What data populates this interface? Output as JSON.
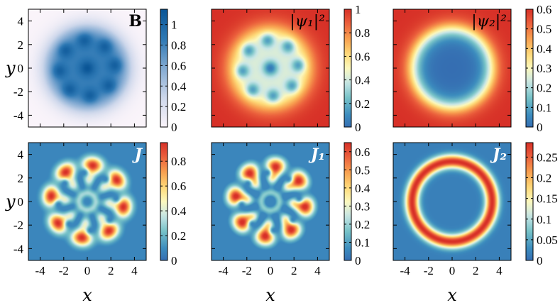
{
  "chart_data": [
    {
      "type": "heatmap",
      "label": "B",
      "label_style": "bold",
      "label_color": "dark",
      "colormap": "white-blue",
      "colorbar_ticks": [
        "0",
        "0.2",
        "0.4",
        "0.6",
        "0.8",
        "1"
      ],
      "vmax": 1.15,
      "pattern": "ring-of-vortices-filled",
      "show_xticks": false,
      "show_yticks": true,
      "ylabel": "y",
      "xlabel": ""
    },
    {
      "type": "heatmap",
      "label": "|ψ₁|²",
      "label_style": "italic",
      "label_color": "dark",
      "colormap": "spectral",
      "colorbar_ticks": [
        "0",
        "0.2",
        "0.4",
        "0.6",
        "0.8",
        "1"
      ],
      "vmax": 1.0,
      "pattern": "ring-of-vortices-holes",
      "show_xticks": false,
      "show_yticks": false,
      "ylabel": "",
      "xlabel": ""
    },
    {
      "type": "heatmap",
      "label": "|ψ₂|²",
      "label_style": "italic",
      "label_color": "dark",
      "colormap": "spectral",
      "colorbar_ticks": [
        "0",
        "0.1",
        "0.2",
        "0.3",
        "0.4",
        "0.5",
        "0.6"
      ],
      "vmax": 0.6,
      "pattern": "disk-hole",
      "show_xticks": false,
      "show_yticks": false,
      "ylabel": "",
      "xlabel": ""
    },
    {
      "type": "heatmap",
      "label": "J",
      "label_style": "bold-italic",
      "label_color": "white",
      "colormap": "spectral",
      "colorbar_ticks": [
        "0",
        "0.2",
        "0.4",
        "0.6",
        "0.8"
      ],
      "vmax": 0.95,
      "pattern": "current-total",
      "show_xticks": true,
      "show_yticks": true,
      "ylabel": "y",
      "xlabel": "x"
    },
    {
      "type": "heatmap",
      "label": "J₁",
      "label_style": "bold-italic",
      "label_color": "white",
      "colormap": "spectral",
      "colorbar_ticks": [
        "0",
        "0.1",
        "0.2",
        "0.3",
        "0.4",
        "0.5",
        "0.6"
      ],
      "vmax": 0.65,
      "pattern": "current-1",
      "show_xticks": true,
      "show_yticks": false,
      "ylabel": "",
      "xlabel": "x"
    },
    {
      "type": "heatmap",
      "label": "J₂",
      "label_style": "bold-italic",
      "label_color": "white",
      "colormap": "spectral",
      "colorbar_ticks": [
        "0",
        "0.05",
        "0.1",
        "0.15",
        "0.2",
        "0.25"
      ],
      "vmax": 0.285,
      "pattern": "current-ring",
      "show_xticks": true,
      "show_yticks": false,
      "ylabel": "",
      "xlabel": "x"
    }
  ],
  "axes": {
    "xlim": [
      -5,
      5
    ],
    "ylim": [
      -5,
      5
    ],
    "tick_values": [
      -4,
      -2,
      0,
      2,
      4
    ],
    "tick_labels": [
      "-4",
      "-2",
      "0",
      "2",
      "4"
    ]
  }
}
